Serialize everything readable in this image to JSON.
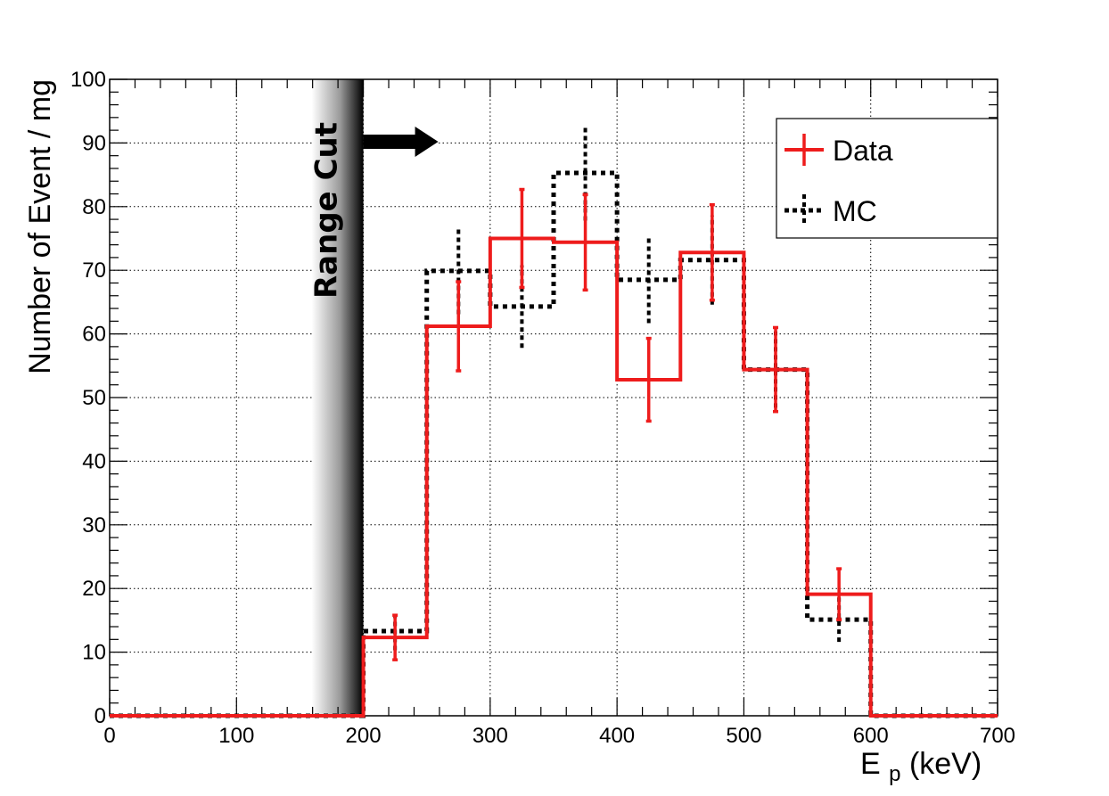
{
  "chart_data": {
    "type": "histogram",
    "xlabel_main": "E",
    "xlabel_sub": "p",
    "xlabel_unit": " (keV)",
    "ylabel": "Number of Event / mg",
    "xlim": [
      0,
      700
    ],
    "ylim": [
      0,
      100
    ],
    "x_ticks": [
      "0",
      "100",
      "200",
      "300",
      "400",
      "500",
      "600",
      "700"
    ],
    "y_ticks": [
      "0",
      "10",
      "20",
      "30",
      "40",
      "50",
      "60",
      "70",
      "80",
      "90",
      "100"
    ],
    "grid": true,
    "legend_position": "top-right",
    "bin_edges": [
      200,
      250,
      300,
      350,
      400,
      450,
      500,
      550,
      600
    ],
    "series": [
      {
        "name": "Data",
        "color": "#ee1c1c",
        "style": "solid",
        "values": [
          12.3,
          61.2,
          75.0,
          74.4,
          52.8,
          72.8,
          54.4,
          19.1
        ],
        "errors": [
          3.5,
          7.0,
          7.7,
          7.5,
          6.5,
          7.5,
          6.6,
          4.0
        ]
      },
      {
        "name": "MC",
        "color": "#000000",
        "style": "dotted",
        "values": [
          13.3,
          69.9,
          64.3,
          85.3,
          68.5,
          71.6,
          54.4,
          15.1
        ],
        "errors": [
          3.0,
          6.8,
          6.5,
          7.5,
          6.8,
          7.0,
          6.0,
          3.5
        ]
      }
    ],
    "annotation": {
      "text": "Range Cut",
      "x": 200
    }
  }
}
